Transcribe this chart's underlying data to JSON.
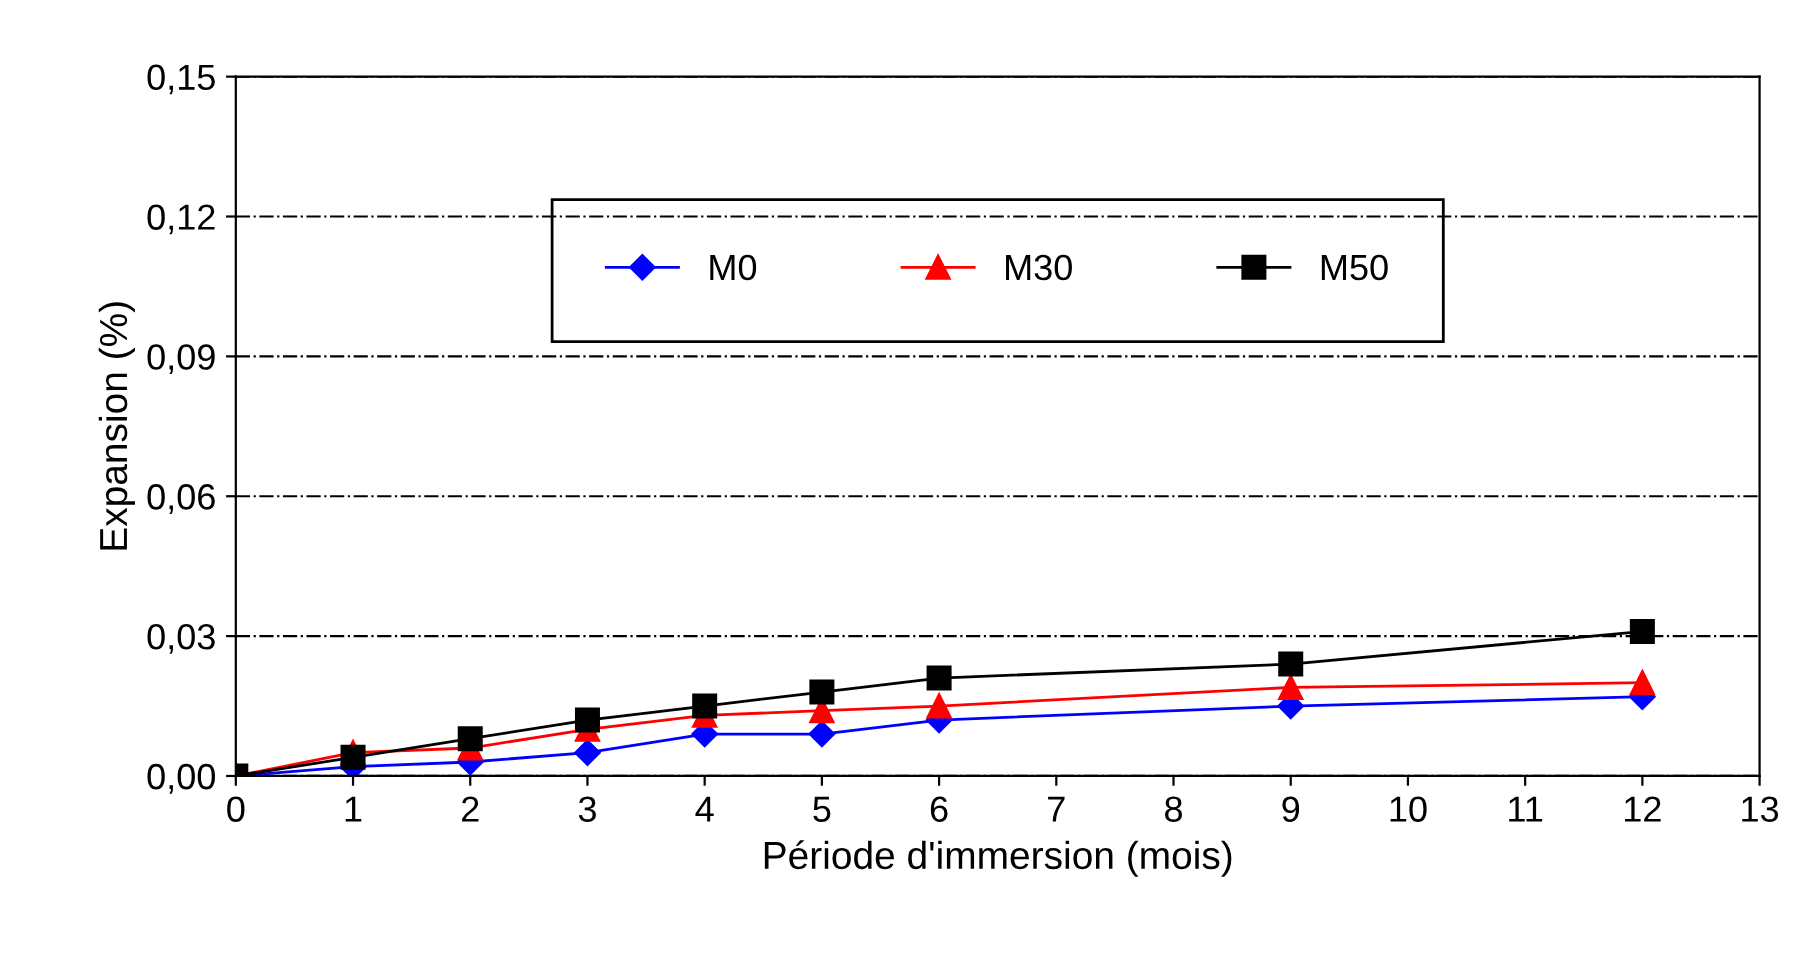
{
  "chart_data": {
    "type": "line",
    "xlabel": "Période d'immersion (mois)",
    "ylabel": "Expansion (%)",
    "x": [
      0,
      1,
      2,
      3,
      4,
      5,
      6,
      9,
      12
    ],
    "series": [
      {
        "name": "M0",
        "color": "#0000ff",
        "marker": "diamond",
        "values": [
          0,
          0.002,
          0.003,
          0.005,
          0.009,
          0.009,
          0.012,
          0.015,
          0.017
        ]
      },
      {
        "name": "M30",
        "color": "#ff0000",
        "marker": "triangle",
        "values": [
          0,
          0.005,
          0.006,
          0.01,
          0.013,
          0.014,
          0.015,
          0.019,
          0.02
        ]
      },
      {
        "name": "M50",
        "color": "#000000",
        "marker": "square",
        "values": [
          0,
          0.004,
          0.008,
          0.012,
          0.015,
          0.018,
          0.021,
          0.024,
          0.031
        ]
      }
    ],
    "xlim": [
      0,
      13
    ],
    "xticks": [
      0,
      1,
      2,
      3,
      4,
      5,
      6,
      7,
      8,
      9,
      10,
      11,
      12,
      13
    ],
    "ylim": [
      0,
      0.15
    ],
    "yticks": [
      {
        "value": 0,
        "label": "0,00"
      },
      {
        "value": 0.03,
        "label": "0,03"
      },
      {
        "value": 0.06,
        "label": "0,06"
      },
      {
        "value": 0.09,
        "label": "0,09"
      },
      {
        "value": 0.12,
        "label": "0,12"
      },
      {
        "value": 0.15,
        "label": "0,15"
      }
    ],
    "grid": "y",
    "legend": "top"
  }
}
